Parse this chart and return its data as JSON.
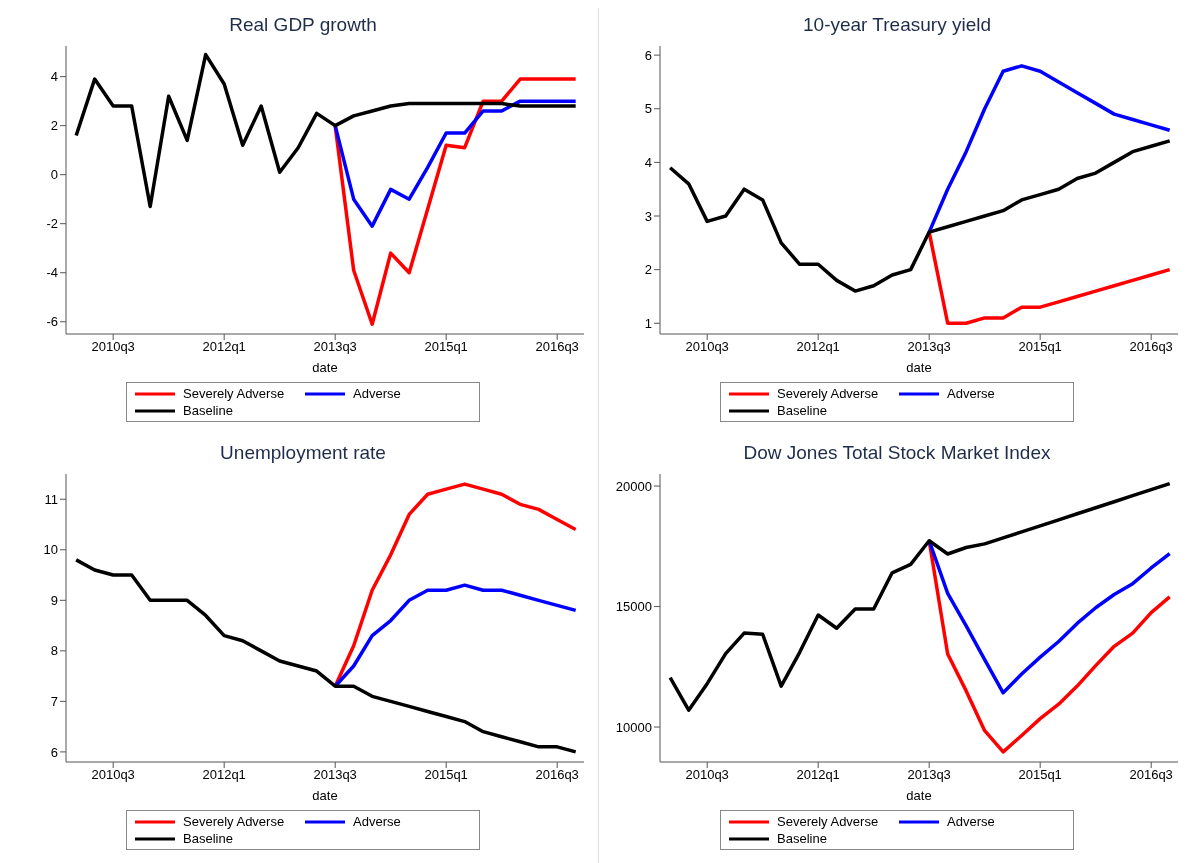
{
  "chart_data": [
    {
      "type": "line",
      "title": "Real GDP growth",
      "xlabel": "date",
      "categories": [
        null,
        null,
        "2010q3",
        null,
        null,
        null,
        null,
        null,
        "2012q1",
        null,
        null,
        null,
        null,
        null,
        "2013q3",
        null,
        null,
        null,
        null,
        null,
        "2015q1",
        null,
        null,
        null,
        null,
        null,
        "2016q3",
        null
      ],
      "ylim": [
        -6.5,
        5.25
      ],
      "yticks": [
        -6,
        -4,
        -2,
        0,
        2,
        4
      ],
      "legend": "bottom",
      "line_style": "solid",
      "series": [
        {
          "name": "Severely Adverse",
          "color": "#ff0000",
          "values": [
            null,
            null,
            null,
            null,
            null,
            null,
            null,
            null,
            null,
            null,
            null,
            null,
            null,
            null,
            2.0,
            -3.9,
            -6.1,
            -3.2,
            -4.0,
            -1.4,
            1.2,
            1.1,
            3.0,
            3.0,
            3.9,
            3.9,
            3.9,
            3.9
          ]
        },
        {
          "name": "Adverse",
          "color": "#0000ff",
          "values": [
            null,
            null,
            null,
            null,
            null,
            null,
            null,
            null,
            null,
            null,
            null,
            null,
            null,
            null,
            2.0,
            -1.0,
            -2.1,
            -0.6,
            -1.0,
            0.3,
            1.7,
            1.7,
            2.6,
            2.6,
            3.0,
            3.0,
            3.0,
            3.0
          ]
        },
        {
          "name": "Baseline",
          "color": "#000000",
          "values": [
            1.6,
            3.9,
            2.8,
            2.8,
            -1.3,
            3.2,
            1.4,
            4.9,
            3.7,
            1.2,
            2.8,
            0.1,
            1.1,
            2.5,
            2.0,
            2.4,
            2.6,
            2.8,
            2.9,
            2.9,
            2.9,
            2.9,
            2.9,
            2.9,
            2.8,
            2.8,
            2.8,
            2.8
          ]
        }
      ]
    },
    {
      "type": "line",
      "title": "10-year Treasury yield",
      "xlabel": "date",
      "categories": [
        null,
        null,
        "2010q3",
        null,
        null,
        null,
        null,
        null,
        "2012q1",
        null,
        null,
        null,
        null,
        null,
        "2013q3",
        null,
        null,
        null,
        null,
        null,
        "2015q1",
        null,
        null,
        null,
        null,
        null,
        "2016q3",
        null
      ],
      "ylim": [
        0.8,
        6.17
      ],
      "yticks": [
        1,
        2,
        3,
        4,
        5,
        6
      ],
      "legend": "bottom",
      "line_style": "solid",
      "series": [
        {
          "name": "Severely Adverse",
          "color": "#ff0000",
          "values": [
            null,
            null,
            null,
            null,
            null,
            null,
            null,
            null,
            null,
            null,
            null,
            null,
            null,
            null,
            2.7,
            1.0,
            1.0,
            1.1,
            1.1,
            1.3,
            1.3,
            1.4,
            1.5,
            1.6,
            1.7,
            1.8,
            1.9,
            2.0
          ]
        },
        {
          "name": "Adverse",
          "color": "#0000ff",
          "values": [
            null,
            null,
            null,
            null,
            null,
            null,
            null,
            null,
            null,
            null,
            null,
            null,
            null,
            null,
            2.7,
            3.5,
            4.2,
            5.0,
            5.7,
            5.8,
            5.7,
            5.5,
            5.3,
            5.1,
            4.9,
            4.8,
            4.7,
            4.6
          ]
        },
        {
          "name": "Baseline",
          "color": "#000000",
          "values": [
            3.9,
            3.6,
            2.9,
            3.0,
            3.5,
            3.3,
            2.5,
            2.1,
            2.1,
            1.8,
            1.6,
            1.7,
            1.9,
            2.0,
            2.7,
            2.8,
            2.9,
            3.0,
            3.1,
            3.3,
            3.4,
            3.5,
            3.7,
            3.8,
            4.0,
            4.2,
            4.3,
            4.4
          ]
        }
      ]
    },
    {
      "type": "line",
      "title": "Unemployment rate",
      "xlabel": "date",
      "categories": [
        null,
        null,
        "2010q3",
        null,
        null,
        null,
        null,
        null,
        "2012q1",
        null,
        null,
        null,
        null,
        null,
        "2013q3",
        null,
        null,
        null,
        null,
        null,
        "2015q1",
        null,
        null,
        null,
        null,
        null,
        "2016q3",
        null
      ],
      "ylim": [
        5.8,
        11.5
      ],
      "yticks": [
        6,
        7,
        8,
        9,
        10,
        11
      ],
      "legend": "bottom",
      "line_style": "solid",
      "series": [
        {
          "name": "Severely Adverse",
          "color": "#ff0000",
          "values": [
            null,
            null,
            null,
            null,
            null,
            null,
            null,
            null,
            null,
            null,
            null,
            null,
            null,
            null,
            7.3,
            8.1,
            9.2,
            9.9,
            10.7,
            11.1,
            11.2,
            11.3,
            11.2,
            11.1,
            10.9,
            10.8,
            10.6,
            10.4
          ]
        },
        {
          "name": "Adverse",
          "color": "#0000ff",
          "values": [
            null,
            null,
            null,
            null,
            null,
            null,
            null,
            null,
            null,
            null,
            null,
            null,
            null,
            null,
            7.3,
            7.7,
            8.3,
            8.6,
            9.0,
            9.2,
            9.2,
            9.3,
            9.2,
            9.2,
            9.1,
            9.0,
            8.9,
            8.8
          ]
        },
        {
          "name": "Baseline",
          "color": "#000000",
          "values": [
            9.8,
            9.6,
            9.5,
            9.5,
            9.0,
            9.0,
            9.0,
            8.7,
            8.3,
            8.2,
            8.0,
            7.8,
            7.7,
            7.6,
            7.3,
            7.3,
            7.1,
            7.0,
            6.9,
            6.8,
            6.7,
            6.6,
            6.4,
            6.3,
            6.2,
            6.1,
            6.1,
            6.0
          ]
        }
      ]
    },
    {
      "type": "line",
      "title": "Dow Jones Total Stock Market Index",
      "xlabel": "date",
      "categories": [
        null,
        null,
        "2010q3",
        null,
        null,
        null,
        null,
        null,
        "2012q1",
        null,
        null,
        null,
        null,
        null,
        "2013q3",
        null,
        null,
        null,
        null,
        null,
        "2015q1",
        null,
        null,
        null,
        null,
        null,
        "2016q3",
        null
      ],
      "ylim": [
        8550,
        20500
      ],
      "yticks": [
        10000,
        15000,
        20000
      ],
      "legend": "bottom",
      "line_style": "solid",
      "series": [
        {
          "name": "Severely Adverse",
          "color": "#ff0000",
          "values": [
            null,
            null,
            null,
            null,
            null,
            null,
            null,
            null,
            null,
            null,
            null,
            null,
            null,
            null,
            17730,
            13030,
            11500,
            9850,
            8970,
            9650,
            10350,
            10950,
            11700,
            12550,
            13350,
            13900,
            14750,
            15400
          ]
        },
        {
          "name": "Adverse",
          "color": "#0000ff",
          "values": [
            null,
            null,
            null,
            null,
            null,
            null,
            null,
            null,
            null,
            null,
            null,
            null,
            null,
            null,
            17730,
            15550,
            14200,
            12800,
            11420,
            12200,
            12900,
            13550,
            14300,
            14950,
            15500,
            15950,
            16600,
            17200
          ]
        },
        {
          "name": "Baseline",
          "color": "#000000",
          "values": [
            12050,
            10700,
            11800,
            13050,
            13900,
            13850,
            11700,
            13100,
            14650,
            14100,
            14900,
            14900,
            16400,
            16750,
            17730,
            17180,
            17450,
            17600,
            17850,
            18100,
            18350,
            18600,
            18850,
            19100,
            19350,
            19600,
            19850,
            20100
          ]
        }
      ]
    }
  ]
}
